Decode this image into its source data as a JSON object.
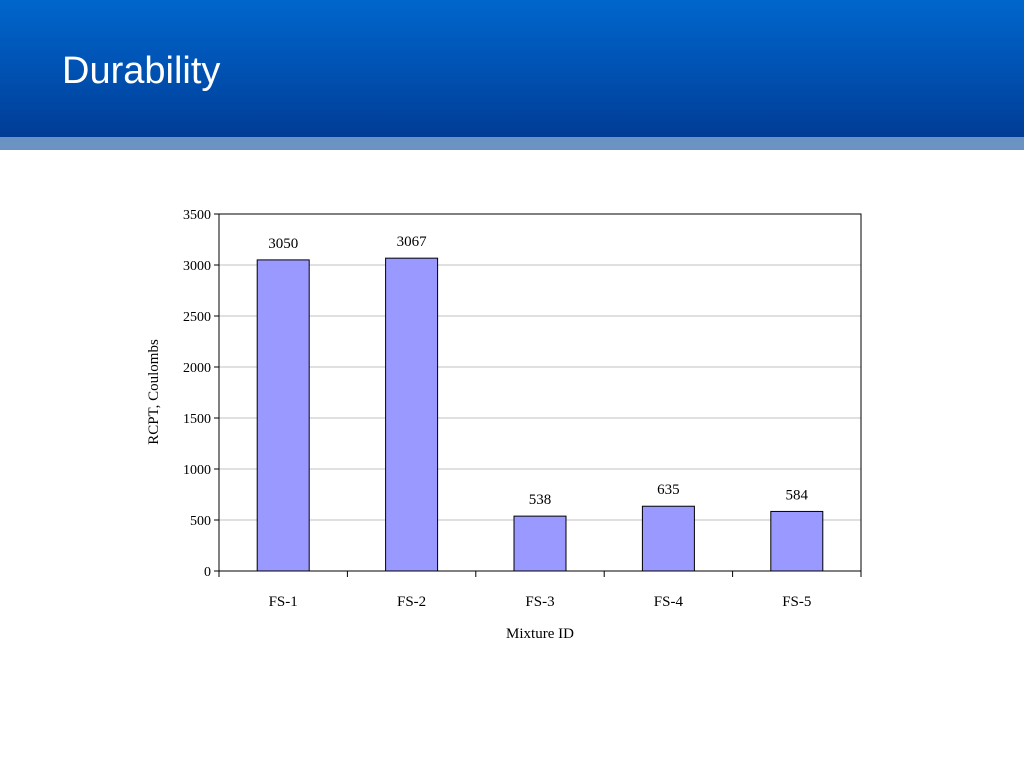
{
  "slide": {
    "title": "Durability",
    "colors": {
      "header_top": "#0066cc",
      "header_bottom": "#003c96",
      "band": "#6a93c4",
      "bar_fill": "#9999ff",
      "bar_stroke": "#000000",
      "grid": "#c0c0c0"
    }
  },
  "chart_data": {
    "type": "bar",
    "categories": [
      "FS-1",
      "FS-2",
      "FS-3",
      "FS-4",
      "FS-5"
    ],
    "values": [
      3050,
      3067,
      538,
      635,
      584
    ],
    "data_labels": [
      "3050",
      "3067",
      "538",
      "635",
      "584"
    ],
    "title": "",
    "xlabel": "Mixture ID",
    "ylabel": "RCPT, Coulombs",
    "ylim": [
      0,
      3500
    ],
    "yticks": [
      0,
      500,
      1000,
      1500,
      2000,
      2500,
      3000,
      3500
    ],
    "grid": true,
    "legend": "none"
  }
}
